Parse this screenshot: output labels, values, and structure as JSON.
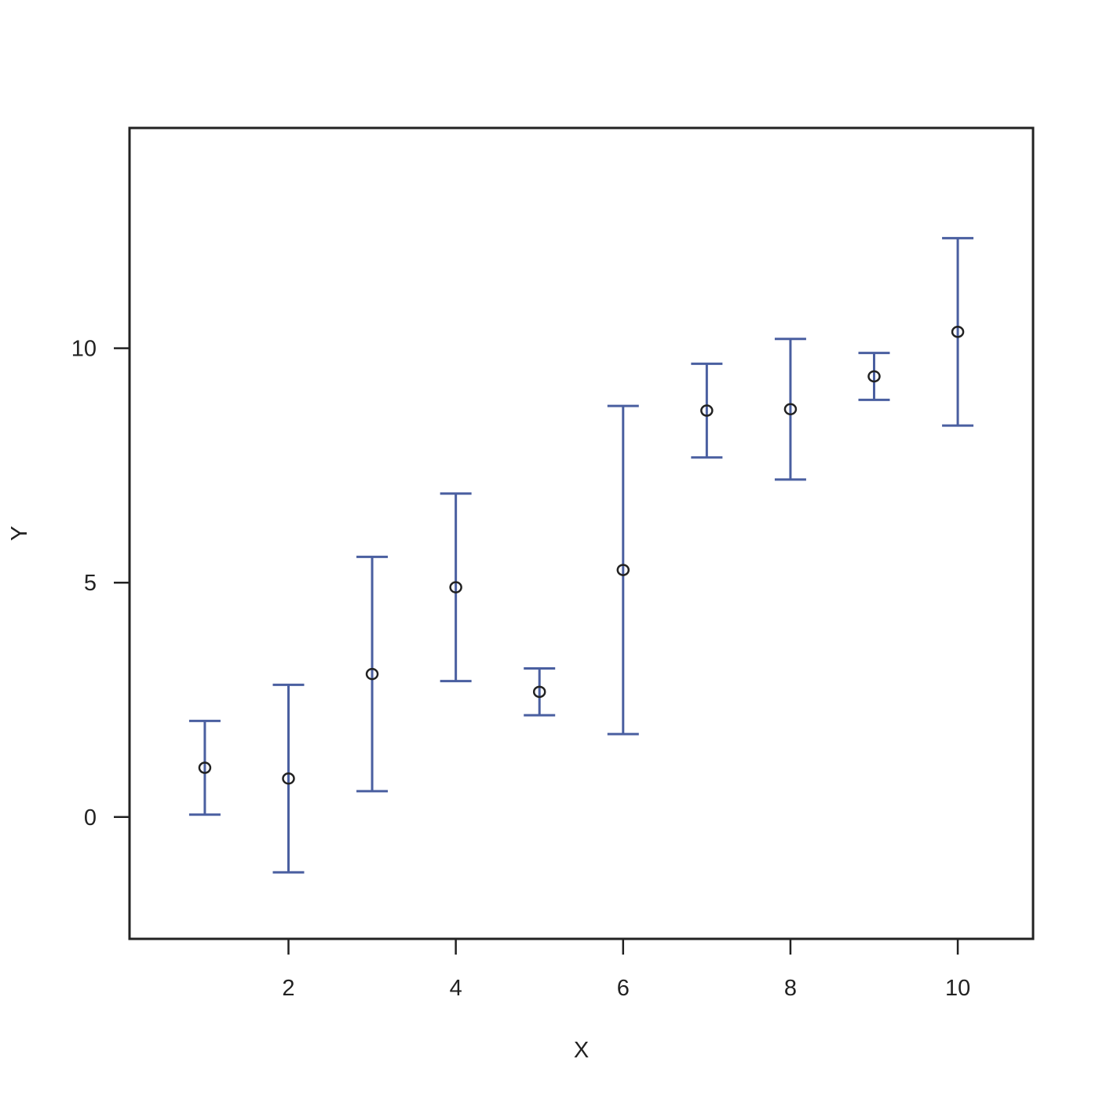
{
  "chart_data": {
    "type": "scatter",
    "xlabel": "X",
    "ylabel": "Y",
    "xlim": [
      0.1,
      10.9
    ],
    "ylim": [
      -2.6,
      14.7
    ],
    "x_ticks": [
      2,
      4,
      6,
      8,
      10
    ],
    "y_ticks": [
      0,
      5,
      10
    ],
    "grid": false,
    "point_marker": "open-circle",
    "errorbar_color": "#4a5fa0",
    "point_color": "#222222",
    "axis_color": "#222222",
    "points": [
      {
        "x": 1,
        "y": 1.05,
        "lower": 0.05,
        "upper": 2.05
      },
      {
        "x": 2,
        "y": 0.82,
        "lower": -1.18,
        "upper": 2.82
      },
      {
        "x": 3,
        "y": 3.05,
        "lower": 0.55,
        "upper": 5.55
      },
      {
        "x": 4,
        "y": 4.9,
        "lower": 2.9,
        "upper": 6.9
      },
      {
        "x": 5,
        "y": 2.67,
        "lower": 2.17,
        "upper": 3.17
      },
      {
        "x": 6,
        "y": 5.27,
        "lower": 1.77,
        "upper": 8.77
      },
      {
        "x": 7,
        "y": 8.67,
        "lower": 7.67,
        "upper": 9.67
      },
      {
        "x": 8,
        "y": 8.7,
        "lower": 7.2,
        "upper": 10.2
      },
      {
        "x": 9,
        "y": 9.4,
        "lower": 8.9,
        "upper": 9.9
      },
      {
        "x": 10,
        "y": 10.35,
        "lower": 8.35,
        "upper": 12.35
      }
    ]
  }
}
